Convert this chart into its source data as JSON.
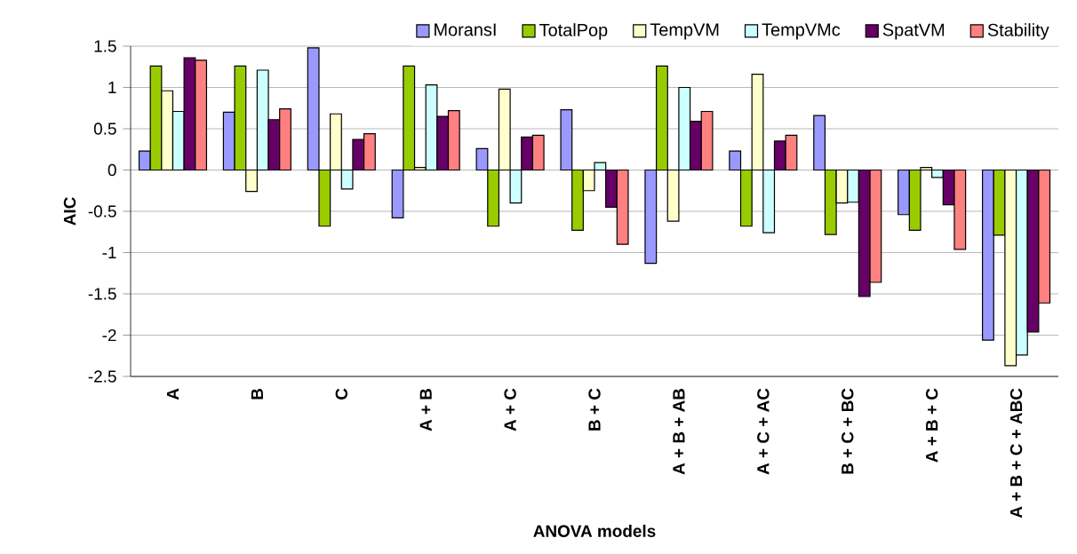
{
  "chart_data": {
    "type": "bar",
    "xlabel": "ANOVA models",
    "ylabel": "AIC",
    "categories": [
      "A",
      "B",
      "C",
      "A + B",
      "A + C",
      "B + C",
      "A + B + AB",
      "A + C + AC",
      "B + C + BC",
      "A + B + C",
      "A + B + C + ABC"
    ],
    "series": [
      {
        "name": "MoransI",
        "color": "#9999ff",
        "values": [
          0.23,
          0.7,
          1.48,
          -0.58,
          0.26,
          0.73,
          -1.13,
          0.23,
          0.66,
          -0.54,
          -2.06
        ]
      },
      {
        "name": "TotalPop",
        "color": "#99cc00",
        "values": [
          1.26,
          1.26,
          -0.68,
          1.26,
          -0.68,
          -0.73,
          1.26,
          -0.68,
          -0.78,
          -0.73,
          -0.79
        ]
      },
      {
        "name": "TempVM",
        "color": "#ffffcc",
        "values": [
          0.96,
          -0.26,
          0.68,
          0.03,
          0.98,
          -0.25,
          -0.62,
          1.16,
          -0.4,
          0.03,
          -2.37
        ]
      },
      {
        "name": "TempVMc",
        "color": "#ccffff",
        "values": [
          0.71,
          1.21,
          -0.23,
          1.03,
          -0.4,
          0.09,
          1.0,
          -0.76,
          -0.39,
          -0.09,
          -2.24
        ]
      },
      {
        "name": "SpatVM",
        "color": "#660066",
        "values": [
          1.36,
          0.61,
          0.37,
          0.65,
          0.4,
          -0.45,
          0.59,
          0.35,
          -1.53,
          -0.42,
          -1.96
        ]
      },
      {
        "name": "Stability",
        "color": "#ff8080",
        "values": [
          1.33,
          0.74,
          0.44,
          0.72,
          0.42,
          -0.9,
          0.71,
          0.42,
          -1.36,
          -0.96,
          -1.61
        ]
      }
    ],
    "ylim": [
      -2.5,
      1.5
    ],
    "yticks": [
      -2.5,
      -2,
      -1.5,
      -1,
      -0.5,
      0,
      0.5,
      1,
      1.5
    ],
    "grid": "y",
    "legend": "top"
  }
}
